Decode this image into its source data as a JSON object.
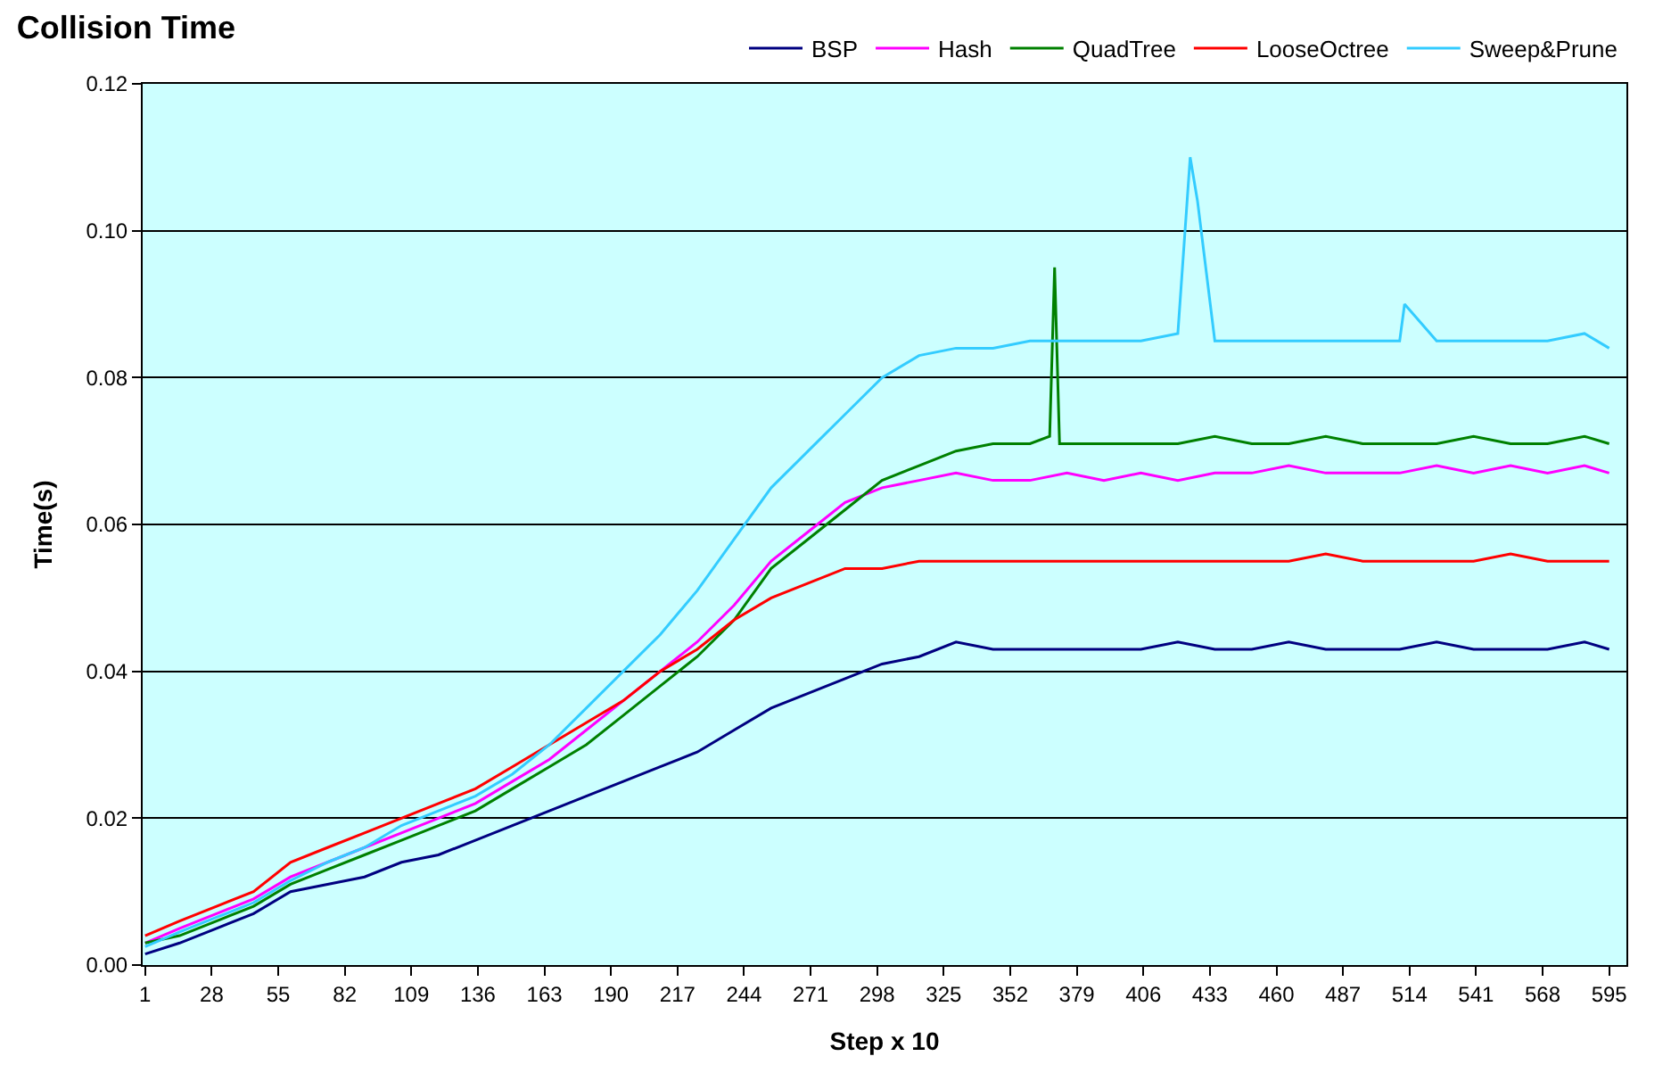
{
  "chart_data": {
    "type": "line",
    "title": "Collision Time",
    "xlabel": "Step x 10",
    "ylabel": "Time(s)",
    "xlim": [
      0,
      602
    ],
    "xticks": [
      1,
      28,
      55,
      82,
      109,
      136,
      163,
      190,
      217,
      244,
      271,
      298,
      325,
      352,
      379,
      406,
      433,
      460,
      487,
      514,
      541,
      568,
      595
    ],
    "ylim": [
      0,
      0.12
    ],
    "yticks": [
      {
        "value": 0,
        "label": "0.00"
      },
      {
        "value": 0.02,
        "label": "0.02"
      },
      {
        "value": 0.04,
        "label": "0.04"
      },
      {
        "value": 0.06,
        "label": "0.06"
      },
      {
        "value": 0.08,
        "label": "0.08"
      },
      {
        "value": 0.1,
        "label": "0.10"
      },
      {
        "value": 0.12,
        "label": "0.12"
      }
    ],
    "grid": "y",
    "legend": "top",
    "marker": "none",
    "line_style": "solid",
    "series": [
      {
        "name": "BSP",
        "color": "#000080",
        "x": [
          1,
          15,
          30,
          45,
          60,
          75,
          90,
          105,
          120,
          135,
          150,
          165,
          180,
          195,
          210,
          225,
          240,
          255,
          270,
          285,
          300,
          315,
          330,
          345,
          360,
          375,
          390,
          405,
          420,
          435,
          450,
          465,
          480,
          495,
          510,
          525,
          540,
          555,
          570,
          585,
          595
        ],
        "values": [
          0.0015,
          0.003,
          0.005,
          0.007,
          0.01,
          0.011,
          0.012,
          0.014,
          0.015,
          0.017,
          0.019,
          0.021,
          0.023,
          0.025,
          0.027,
          0.029,
          0.032,
          0.035,
          0.037,
          0.039,
          0.041,
          0.042,
          0.044,
          0.043,
          0.043,
          0.043,
          0.043,
          0.043,
          0.044,
          0.043,
          0.043,
          0.044,
          0.043,
          0.043,
          0.043,
          0.044,
          0.043,
          0.043,
          0.043,
          0.044,
          0.043
        ]
      },
      {
        "name": "Hash",
        "color": "#ff00ff",
        "x": [
          1,
          15,
          30,
          45,
          60,
          75,
          90,
          105,
          120,
          135,
          150,
          165,
          180,
          195,
          210,
          225,
          240,
          255,
          270,
          285,
          300,
          315,
          330,
          345,
          360,
          375,
          390,
          405,
          420,
          435,
          450,
          465,
          480,
          495,
          510,
          525,
          540,
          555,
          570,
          585,
          595
        ],
        "values": [
          0.003,
          0.005,
          0.007,
          0.009,
          0.012,
          0.014,
          0.016,
          0.018,
          0.02,
          0.022,
          0.025,
          0.028,
          0.032,
          0.036,
          0.04,
          0.044,
          0.049,
          0.055,
          0.059,
          0.063,
          0.065,
          0.066,
          0.067,
          0.066,
          0.066,
          0.067,
          0.066,
          0.067,
          0.066,
          0.067,
          0.067,
          0.068,
          0.067,
          0.067,
          0.067,
          0.068,
          0.067,
          0.068,
          0.067,
          0.068,
          0.067
        ]
      },
      {
        "name": "QuadTree",
        "color": "#008000",
        "x": [
          1,
          15,
          30,
          45,
          60,
          75,
          90,
          105,
          120,
          135,
          150,
          165,
          180,
          195,
          210,
          225,
          240,
          255,
          270,
          285,
          300,
          315,
          330,
          345,
          360,
          368,
          370,
          372,
          375,
          390,
          405,
          420,
          435,
          450,
          465,
          480,
          495,
          510,
          525,
          540,
          555,
          570,
          585,
          595
        ],
        "values": [
          0.003,
          0.004,
          0.006,
          0.008,
          0.011,
          0.013,
          0.015,
          0.017,
          0.019,
          0.021,
          0.024,
          0.027,
          0.03,
          0.034,
          0.038,
          0.042,
          0.047,
          0.054,
          0.058,
          0.062,
          0.066,
          0.068,
          0.07,
          0.071,
          0.071,
          0.072,
          0.095,
          0.071,
          0.071,
          0.071,
          0.071,
          0.071,
          0.072,
          0.071,
          0.071,
          0.072,
          0.071,
          0.071,
          0.071,
          0.072,
          0.071,
          0.071,
          0.072,
          0.071
        ]
      },
      {
        "name": "LooseOctree",
        "color": "#ff0000",
        "x": [
          1,
          15,
          30,
          45,
          60,
          75,
          90,
          105,
          120,
          135,
          150,
          165,
          180,
          195,
          210,
          225,
          240,
          255,
          270,
          285,
          300,
          315,
          330,
          345,
          360,
          375,
          390,
          405,
          420,
          435,
          450,
          465,
          480,
          495,
          510,
          525,
          540,
          555,
          570,
          585,
          595
        ],
        "values": [
          0.004,
          0.006,
          0.008,
          0.01,
          0.014,
          0.016,
          0.018,
          0.02,
          0.022,
          0.024,
          0.027,
          0.03,
          0.033,
          0.036,
          0.04,
          0.043,
          0.047,
          0.05,
          0.052,
          0.054,
          0.054,
          0.055,
          0.055,
          0.055,
          0.055,
          0.055,
          0.055,
          0.055,
          0.055,
          0.055,
          0.055,
          0.055,
          0.056,
          0.055,
          0.055,
          0.055,
          0.055,
          0.056,
          0.055,
          0.055,
          0.055
        ]
      },
      {
        "name": "Sweep&Prune",
        "color": "#33ccff",
        "x": [
          1,
          15,
          30,
          45,
          60,
          75,
          90,
          105,
          120,
          135,
          150,
          165,
          180,
          195,
          210,
          225,
          240,
          255,
          270,
          285,
          300,
          315,
          330,
          345,
          360,
          375,
          390,
          405,
          420,
          425,
          428,
          435,
          450,
          465,
          480,
          495,
          510,
          512,
          525,
          540,
          555,
          570,
          585,
          595
        ],
        "values": [
          0.0025,
          0.0045,
          0.0065,
          0.0085,
          0.0115,
          0.014,
          0.016,
          0.019,
          0.021,
          0.023,
          0.026,
          0.03,
          0.035,
          0.04,
          0.045,
          0.051,
          0.058,
          0.065,
          0.07,
          0.075,
          0.08,
          0.083,
          0.084,
          0.084,
          0.085,
          0.085,
          0.085,
          0.085,
          0.086,
          0.11,
          0.104,
          0.085,
          0.085,
          0.085,
          0.085,
          0.085,
          0.085,
          0.09,
          0.085,
          0.085,
          0.085,
          0.085,
          0.086,
          0.084
        ]
      }
    ]
  }
}
